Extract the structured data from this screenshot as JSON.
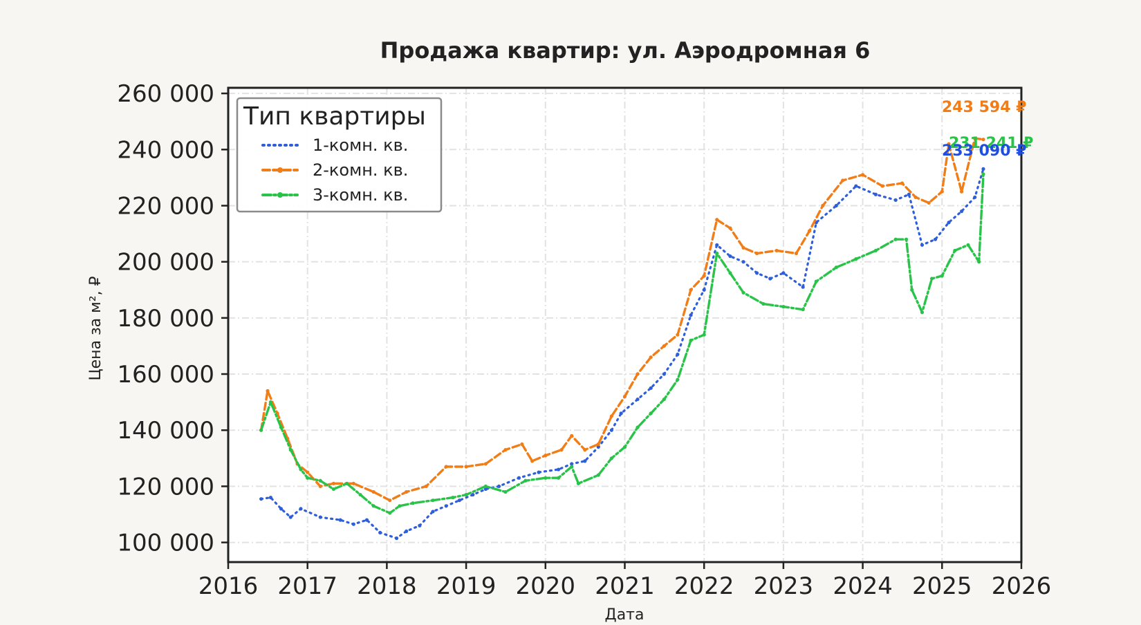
{
  "chart_data": {
    "type": "line",
    "title": "Продажа квартир: ул. Аэродромная 6",
    "xlabel": "Дата",
    "ylabel": "Цена за м², ₽",
    "xlim": [
      "2016-01-01",
      "2026-01-01"
    ],
    "ylim": [
      93000,
      262000
    ],
    "grid": true,
    "x_ticks": [
      "2016",
      "2017",
      "2018",
      "2019",
      "2020",
      "2021",
      "2022",
      "2023",
      "2024",
      "2025",
      "2026"
    ],
    "y_ticks": [
      100000,
      120000,
      140000,
      160000,
      180000,
      200000,
      220000,
      240000,
      260000
    ],
    "y_tick_labels": [
      "100 000",
      "120 000",
      "140 000",
      "160 000",
      "180 000",
      "200 000",
      "220 000",
      "240 000",
      "260 000"
    ],
    "legend": {
      "title": "Тип квартиры",
      "placement": "top-left"
    },
    "series": [
      {
        "name": "1-комн. кв.",
        "color": "#2f5fd8",
        "style": "dotted",
        "points": [
          [
            "2016-06-01",
            115500
          ],
          [
            "2016-07-15",
            116000
          ],
          [
            "2016-09-01",
            112000
          ],
          [
            "2016-10-15",
            109000
          ],
          [
            "2016-12-01",
            112000
          ],
          [
            "2017-03-01",
            109000
          ],
          [
            "2017-06-01",
            108000
          ],
          [
            "2017-08-01",
            106500
          ],
          [
            "2017-10-01",
            108000
          ],
          [
            "2017-12-01",
            103500
          ],
          [
            "2018-02-15",
            101500
          ],
          [
            "2018-04-01",
            104000
          ],
          [
            "2018-06-01",
            106000
          ],
          [
            "2018-08-01",
            111000
          ],
          [
            "2018-10-01",
            113000
          ],
          [
            "2018-12-01",
            115000
          ],
          [
            "2019-02-01",
            117000
          ],
          [
            "2019-04-01",
            119000
          ],
          [
            "2019-06-01",
            120000
          ],
          [
            "2019-09-01",
            123000
          ],
          [
            "2019-12-01",
            125000
          ],
          [
            "2020-03-01",
            126000
          ],
          [
            "2020-05-01",
            128000
          ],
          [
            "2020-07-01",
            129000
          ],
          [
            "2020-09-01",
            134000
          ],
          [
            "2020-11-01",
            140000
          ],
          [
            "2020-12-15",
            146000
          ],
          [
            "2021-03-01",
            151000
          ],
          [
            "2021-05-01",
            155000
          ],
          [
            "2021-07-01",
            160000
          ],
          [
            "2021-09-01",
            167000
          ],
          [
            "2021-11-01",
            181000
          ],
          [
            "2022-01-01",
            190000
          ],
          [
            "2022-03-01",
            206000
          ],
          [
            "2022-05-01",
            202000
          ],
          [
            "2022-07-01",
            200000
          ],
          [
            "2022-09-01",
            196000
          ],
          [
            "2022-11-01",
            194000
          ],
          [
            "2023-01-01",
            196000
          ],
          [
            "2023-04-01",
            191000
          ],
          [
            "2023-06-01",
            214000
          ],
          [
            "2023-09-01",
            220000
          ],
          [
            "2023-12-01",
            227000
          ],
          [
            "2024-03-01",
            224000
          ],
          [
            "2024-06-01",
            222000
          ],
          [
            "2024-08-01",
            224000
          ],
          [
            "2024-10-01",
            206000
          ],
          [
            "2024-12-01",
            208000
          ],
          [
            "2025-02-01",
            214000
          ],
          [
            "2025-04-01",
            218000
          ],
          [
            "2025-06-01",
            223000
          ],
          [
            "2025-07-10",
            233090
          ]
        ]
      },
      {
        "name": "2-комн. кв.",
        "color": "#f07d17",
        "style": "dashed",
        "points": [
          [
            "2016-06-01",
            140000
          ],
          [
            "2016-07-01",
            154000
          ],
          [
            "2016-08-15",
            146000
          ],
          [
            "2016-10-01",
            137000
          ],
          [
            "2016-11-15",
            128000
          ],
          [
            "2017-01-01",
            125000
          ],
          [
            "2017-03-01",
            120000
          ],
          [
            "2017-05-01",
            121000
          ],
          [
            "2017-08-01",
            121000
          ],
          [
            "2017-11-01",
            118000
          ],
          [
            "2018-01-15",
            115000
          ],
          [
            "2018-04-01",
            118000
          ],
          [
            "2018-07-01",
            120000
          ],
          [
            "2018-10-01",
            127000
          ],
          [
            "2019-01-01",
            127000
          ],
          [
            "2019-04-01",
            128000
          ],
          [
            "2019-07-01",
            133000
          ],
          [
            "2019-09-15",
            135000
          ],
          [
            "2019-11-01",
            129000
          ],
          [
            "2020-01-01",
            131000
          ],
          [
            "2020-03-15",
            133000
          ],
          [
            "2020-05-01",
            138000
          ],
          [
            "2020-07-01",
            133000
          ],
          [
            "2020-09-01",
            135000
          ],
          [
            "2020-11-01",
            145000
          ],
          [
            "2021-01-01",
            152000
          ],
          [
            "2021-03-01",
            160000
          ],
          [
            "2021-05-01",
            166000
          ],
          [
            "2021-07-01",
            170000
          ],
          [
            "2021-09-01",
            174000
          ],
          [
            "2021-11-01",
            190000
          ],
          [
            "2022-01-01",
            195000
          ],
          [
            "2022-03-01",
            215000
          ],
          [
            "2022-05-01",
            212000
          ],
          [
            "2022-07-01",
            205000
          ],
          [
            "2022-09-01",
            203000
          ],
          [
            "2022-12-01",
            204000
          ],
          [
            "2023-03-01",
            203000
          ],
          [
            "2023-05-01",
            211000
          ],
          [
            "2023-07-01",
            220000
          ],
          [
            "2023-10-01",
            229000
          ],
          [
            "2024-01-01",
            231000
          ],
          [
            "2024-04-01",
            227000
          ],
          [
            "2024-07-01",
            228000
          ],
          [
            "2024-09-01",
            223000
          ],
          [
            "2024-11-01",
            221000
          ],
          [
            "2025-01-01",
            225000
          ],
          [
            "2025-02-01",
            242000
          ],
          [
            "2025-04-01",
            225000
          ],
          [
            "2025-06-01",
            244000
          ],
          [
            "2025-07-10",
            243594
          ]
        ]
      },
      {
        "name": "3-комн. кв.",
        "color": "#2ac349",
        "style": "dashdot",
        "points": [
          [
            "2016-06-01",
            140000
          ],
          [
            "2016-07-15",
            150000
          ],
          [
            "2016-09-01",
            141000
          ],
          [
            "2016-10-15",
            133000
          ],
          [
            "2016-12-01",
            126000
          ],
          [
            "2017-01-01",
            123000
          ],
          [
            "2017-03-01",
            122000
          ],
          [
            "2017-05-01",
            119000
          ],
          [
            "2017-07-01",
            121000
          ],
          [
            "2017-09-01",
            117000
          ],
          [
            "2017-11-01",
            113000
          ],
          [
            "2018-01-15",
            110500
          ],
          [
            "2018-03-01",
            113000
          ],
          [
            "2018-05-01",
            114000
          ],
          [
            "2018-08-01",
            115000
          ],
          [
            "2018-11-01",
            116000
          ],
          [
            "2019-01-01",
            117000
          ],
          [
            "2019-04-01",
            120000
          ],
          [
            "2019-07-01",
            118000
          ],
          [
            "2019-10-01",
            122000
          ],
          [
            "2020-01-01",
            123000
          ],
          [
            "2020-03-01",
            123000
          ],
          [
            "2020-05-01",
            127000
          ],
          [
            "2020-06-01",
            121000
          ],
          [
            "2020-09-01",
            124000
          ],
          [
            "2020-11-01",
            130000
          ],
          [
            "2021-01-01",
            134000
          ],
          [
            "2021-03-01",
            141000
          ],
          [
            "2021-05-01",
            146000
          ],
          [
            "2021-07-01",
            151000
          ],
          [
            "2021-09-01",
            158000
          ],
          [
            "2021-11-01",
            172000
          ],
          [
            "2022-01-01",
            174000
          ],
          [
            "2022-03-01",
            203000
          ],
          [
            "2022-05-01",
            196000
          ],
          [
            "2022-07-01",
            189000
          ],
          [
            "2022-10-01",
            185000
          ],
          [
            "2023-01-01",
            184000
          ],
          [
            "2023-04-01",
            183000
          ],
          [
            "2023-06-01",
            193000
          ],
          [
            "2023-09-01",
            198000
          ],
          [
            "2023-12-01",
            201000
          ],
          [
            "2024-03-01",
            204000
          ],
          [
            "2024-06-01",
            208000
          ],
          [
            "2024-07-20",
            208000
          ],
          [
            "2024-08-15",
            190000
          ],
          [
            "2024-10-01",
            182000
          ],
          [
            "2024-11-15",
            194000
          ],
          [
            "2025-01-01",
            195000
          ],
          [
            "2025-03-01",
            204000
          ],
          [
            "2025-05-01",
            206000
          ],
          [
            "2025-06-20",
            200000
          ],
          [
            "2025-07-10",
            231241
          ]
        ]
      }
    ],
    "end_labels": [
      {
        "text": "243 594 ₽",
        "color": "#f07d17",
        "value": 243594
      },
      {
        "text": "231 241 ₽",
        "color": "#2ac349",
        "value": 231241
      },
      {
        "text": "233 090 ₽",
        "color": "#1f4de0",
        "value": 233090
      }
    ]
  }
}
